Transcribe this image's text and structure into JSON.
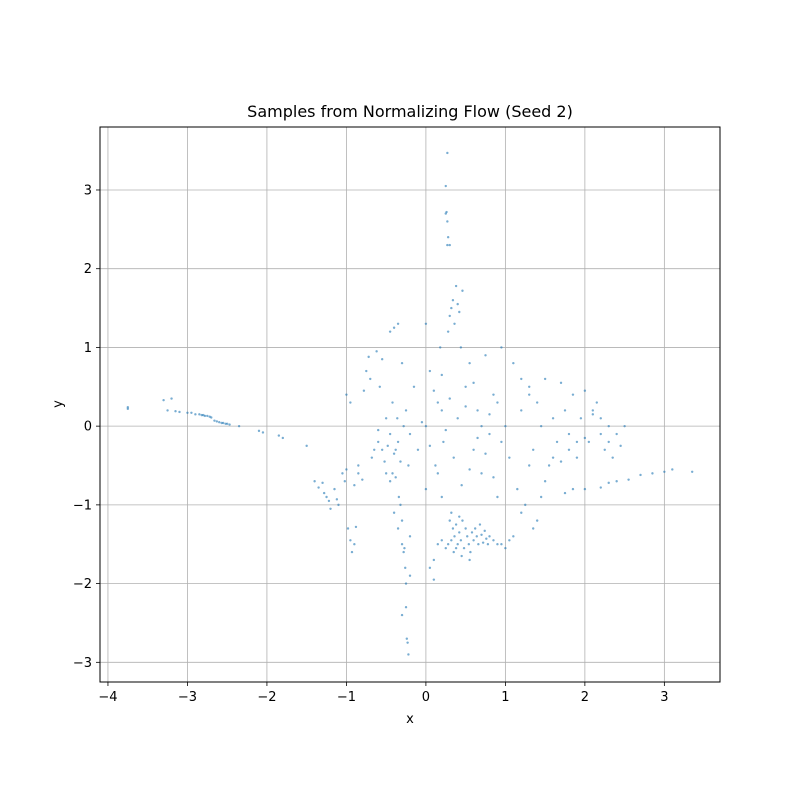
{
  "chart_data": {
    "type": "scatter",
    "title": "Samples from Normalizing Flow (Seed 2)",
    "xlabel": "x",
    "ylabel": "y",
    "xlim": [
      -4.1,
      3.7
    ],
    "ylim": [
      -3.25,
      3.8
    ],
    "xticks": [
      -4,
      -3,
      -2,
      -1,
      0,
      1,
      2,
      3
    ],
    "yticks": [
      -3,
      -2,
      -1,
      0,
      1,
      2,
      3
    ],
    "xtick_labels": [
      "−4",
      "−3",
      "−2",
      "−1",
      "0",
      "1",
      "2",
      "3"
    ],
    "ytick_labels": [
      "−3",
      "−2",
      "−1",
      "0",
      "1",
      "2",
      "3"
    ],
    "grid": true,
    "point_color": "#1f77b4",
    "point_alpha": 0.6,
    "series": [
      {
        "points": [
          [
            -3.75,
            0.24
          ],
          [
            -3.75,
            0.22
          ],
          [
            -3.3,
            0.33
          ],
          [
            -3.25,
            0.2
          ],
          [
            -3.2,
            0.35
          ],
          [
            -3.15,
            0.19
          ],
          [
            -3.1,
            0.18
          ],
          [
            -3.0,
            0.17
          ],
          [
            -2.95,
            0.17
          ],
          [
            -2.9,
            0.15
          ],
          [
            -2.85,
            0.15
          ],
          [
            -2.82,
            0.14
          ],
          [
            -2.8,
            0.14
          ],
          [
            -2.78,
            0.13
          ],
          [
            -2.75,
            0.13
          ],
          [
            -2.72,
            0.12
          ],
          [
            -2.7,
            0.11
          ],
          [
            -2.66,
            0.07
          ],
          [
            -2.63,
            0.06
          ],
          [
            -2.6,
            0.05
          ],
          [
            -2.57,
            0.04
          ],
          [
            -2.55,
            0.04
          ],
          [
            -2.52,
            0.03
          ],
          [
            -2.5,
            0.03
          ],
          [
            -2.47,
            0.02
          ],
          [
            -2.35,
            0.0
          ],
          [
            -2.1,
            -0.06
          ],
          [
            -2.05,
            -0.08
          ],
          [
            -1.85,
            -0.12
          ],
          [
            -1.8,
            -0.15
          ],
          [
            -1.5,
            -0.25
          ],
          [
            -1.4,
            -0.7
          ],
          [
            -1.35,
            -0.78
          ],
          [
            -1.3,
            -0.72
          ],
          [
            -1.28,
            -0.85
          ],
          [
            -1.25,
            -0.9
          ],
          [
            -1.22,
            -0.95
          ],
          [
            -1.2,
            -1.05
          ],
          [
            -1.15,
            -0.8
          ],
          [
            -1.12,
            -0.93
          ],
          [
            -1.1,
            -1.0
          ],
          [
            -1.05,
            -0.6
          ],
          [
            -1.02,
            -0.7
          ],
          [
            -1.0,
            -0.55
          ],
          [
            -0.98,
            -1.3
          ],
          [
            -0.95,
            -1.45
          ],
          [
            -0.93,
            -1.6
          ],
          [
            -0.9,
            -1.5
          ],
          [
            -0.88,
            -1.28
          ],
          [
            -0.85,
            -0.6
          ],
          [
            -1.0,
            0.4
          ],
          [
            -0.95,
            0.3
          ],
          [
            -0.9,
            -0.75
          ],
          [
            -0.85,
            -0.5
          ],
          [
            -0.8,
            -0.68
          ],
          [
            -0.78,
            0.45
          ],
          [
            -0.75,
            0.7
          ],
          [
            -0.72,
            0.88
          ],
          [
            -0.7,
            0.6
          ],
          [
            -0.68,
            -0.4
          ],
          [
            -0.65,
            -0.3
          ],
          [
            -0.62,
            0.95
          ],
          [
            -0.6,
            -0.2
          ],
          [
            -0.58,
            0.5
          ],
          [
            -0.55,
            0.85
          ],
          [
            -0.52,
            -0.45
          ],
          [
            -0.5,
            -0.6
          ],
          [
            -0.48,
            -0.25
          ],
          [
            -0.45,
            -0.1
          ],
          [
            -0.42,
            0.3
          ],
          [
            -0.4,
            -0.35
          ],
          [
            -0.38,
            -0.65
          ],
          [
            -0.36,
            0.1
          ],
          [
            -0.34,
            -0.9
          ],
          [
            -0.32,
            -1.0
          ],
          [
            -0.3,
            -1.2
          ],
          [
            -0.3,
            -1.5
          ],
          [
            -0.28,
            -1.6
          ],
          [
            -0.27,
            -1.55
          ],
          [
            -0.26,
            -1.8
          ],
          [
            -0.25,
            -2.0
          ],
          [
            -0.25,
            -2.3
          ],
          [
            -0.24,
            -2.7
          ],
          [
            -0.23,
            -2.75
          ],
          [
            -0.22,
            -2.9
          ],
          [
            -0.3,
            -2.4
          ],
          [
            -0.2,
            -1.9
          ],
          [
            -0.2,
            -1.4
          ],
          [
            -0.35,
            -1.3
          ],
          [
            -0.4,
            -1.1
          ],
          [
            -0.45,
            1.2
          ],
          [
            -0.4,
            1.25
          ],
          [
            -0.35,
            1.3
          ],
          [
            -0.3,
            0.8
          ],
          [
            -0.25,
            0.2
          ],
          [
            -0.2,
            -0.1
          ],
          [
            -0.15,
            0.5
          ],
          [
            -0.1,
            -0.3
          ],
          [
            -0.05,
            0.05
          ],
          [
            0.0,
            1.3
          ],
          [
            0.0,
            -0.8
          ],
          [
            0.05,
            0.7
          ],
          [
            0.05,
            -1.8
          ],
          [
            0.1,
            -1.7
          ],
          [
            0.1,
            -1.95
          ],
          [
            0.12,
            -0.5
          ],
          [
            0.15,
            0.3
          ],
          [
            0.15,
            -1.5
          ],
          [
            0.18,
            1.0
          ],
          [
            0.2,
            -0.9
          ],
          [
            0.2,
            0.2
          ],
          [
            0.22,
            -0.2
          ],
          [
            0.25,
            2.7
          ],
          [
            0.26,
            2.72
          ],
          [
            0.27,
            2.6
          ],
          [
            0.25,
            3.05
          ],
          [
            0.27,
            3.47
          ],
          [
            0.28,
            2.4
          ],
          [
            0.27,
            2.3
          ],
          [
            0.3,
            2.3
          ],
          [
            0.28,
            1.2
          ],
          [
            0.3,
            1.4
          ],
          [
            0.32,
            1.5
          ],
          [
            0.34,
            1.6
          ],
          [
            0.36,
            1.3
          ],
          [
            0.38,
            1.78
          ],
          [
            0.4,
            1.55
          ],
          [
            0.42,
            1.45
          ],
          [
            0.44,
            1.0
          ],
          [
            0.46,
            1.72
          ],
          [
            0.3,
            -1.2
          ],
          [
            0.32,
            -1.1
          ],
          [
            0.34,
            -1.3
          ],
          [
            0.36,
            -1.4
          ],
          [
            0.38,
            -1.25
          ],
          [
            0.4,
            -1.5
          ],
          [
            0.42,
            -1.35
          ],
          [
            0.44,
            -1.45
          ],
          [
            0.46,
            -1.2
          ],
          [
            0.48,
            -1.55
          ],
          [
            0.5,
            -1.3
          ],
          [
            0.52,
            -1.4
          ],
          [
            0.54,
            -1.5
          ],
          [
            0.56,
            -1.6
          ],
          [
            0.58,
            -1.35
          ],
          [
            0.6,
            -1.45
          ],
          [
            0.62,
            -1.3
          ],
          [
            0.64,
            -1.4
          ],
          [
            0.66,
            -1.5
          ],
          [
            0.68,
            -1.25
          ],
          [
            0.7,
            -1.38
          ],
          [
            0.72,
            -1.48
          ],
          [
            0.74,
            -1.33
          ],
          [
            0.76,
            -1.43
          ],
          [
            0.78,
            -1.5
          ],
          [
            0.8,
            -1.4
          ],
          [
            0.85,
            -1.45
          ],
          [
            0.9,
            -1.5
          ],
          [
            0.95,
            -1.5
          ],
          [
            1.0,
            -1.55
          ],
          [
            1.05,
            -1.45
          ],
          [
            0.25,
            -1.55
          ],
          [
            0.2,
            -1.45
          ],
          [
            0.28,
            -1.5
          ],
          [
            0.35,
            -1.6
          ],
          [
            0.45,
            -1.65
          ],
          [
            0.55,
            -1.7
          ],
          [
            0.32,
            -1.45
          ],
          [
            0.38,
            -1.55
          ],
          [
            0.42,
            -1.15
          ],
          [
            0.5,
            0.5
          ],
          [
            0.55,
            0.8
          ],
          [
            0.6,
            -0.3
          ],
          [
            0.65,
            0.2
          ],
          [
            0.7,
            -0.6
          ],
          [
            0.75,
            0.9
          ],
          [
            0.8,
            -0.1
          ],
          [
            0.85,
            0.4
          ],
          [
            0.9,
            -0.9
          ],
          [
            0.95,
            1.0
          ],
          [
            1.0,
            0.0
          ],
          [
            1.05,
            -0.4
          ],
          [
            1.1,
            0.8
          ],
          [
            1.15,
            -0.8
          ],
          [
            1.2,
            0.2
          ],
          [
            1.25,
            -1.0
          ],
          [
            1.3,
            0.5
          ],
          [
            1.35,
            -0.3
          ],
          [
            1.4,
            -1.2
          ],
          [
            1.45,
            0.0
          ],
          [
            1.2,
            0.6
          ],
          [
            1.3,
            0.4
          ],
          [
            1.4,
            0.3
          ],
          [
            1.5,
            0.6
          ],
          [
            1.55,
            -0.5
          ],
          [
            1.6,
            0.1
          ],
          [
            1.65,
            -0.2
          ],
          [
            1.7,
            0.55
          ],
          [
            1.75,
            0.2
          ],
          [
            1.8,
            -0.1
          ],
          [
            1.85,
            0.4
          ],
          [
            1.9,
            -0.4
          ],
          [
            1.95,
            0.1
          ],
          [
            2.0,
            0.45
          ],
          [
            2.05,
            -0.2
          ],
          [
            2.1,
            0.2
          ],
          [
            2.15,
            0.3
          ],
          [
            2.2,
            -0.1
          ],
          [
            2.25,
            -0.3
          ],
          [
            2.3,
            0.0
          ],
          [
            1.6,
            -0.4
          ],
          [
            1.7,
            -0.45
          ],
          [
            1.8,
            -0.3
          ],
          [
            1.9,
            -0.2
          ],
          [
            2.0,
            -0.15
          ],
          [
            2.1,
            0.15
          ],
          [
            2.2,
            0.1
          ],
          [
            2.3,
            -0.2
          ],
          [
            2.35,
            -0.4
          ],
          [
            2.4,
            -0.1
          ],
          [
            2.45,
            -0.25
          ],
          [
            2.5,
            0.0
          ],
          [
            1.75,
            -0.85
          ],
          [
            1.85,
            -0.8
          ],
          [
            2.0,
            -0.8
          ],
          [
            2.2,
            -0.78
          ],
          [
            2.3,
            -0.72
          ],
          [
            2.4,
            -0.7
          ],
          [
            2.55,
            -0.68
          ],
          [
            2.7,
            -0.62
          ],
          [
            2.85,
            -0.6
          ],
          [
            3.0,
            -0.58
          ],
          [
            3.1,
            -0.55
          ],
          [
            3.35,
            -0.58
          ],
          [
            1.3,
            -0.5
          ],
          [
            1.5,
            -0.7
          ],
          [
            1.2,
            -1.1
          ],
          [
            1.1,
            -1.4
          ],
          [
            1.35,
            -1.3
          ],
          [
            1.45,
            -0.9
          ],
          [
            -0.6,
            -0.05
          ],
          [
            -0.55,
            -0.3
          ],
          [
            -0.5,
            0.1
          ],
          [
            -0.45,
            -0.7
          ],
          [
            -0.42,
            -0.6
          ],
          [
            -0.38,
            -0.3
          ],
          [
            -0.35,
            -0.2
          ],
          [
            -0.32,
            -0.45
          ],
          [
            -0.28,
            0.0
          ],
          [
            -0.22,
            -0.5
          ],
          [
            0.0,
            0.0
          ],
          [
            0.05,
            -0.25
          ],
          [
            0.1,
            0.45
          ],
          [
            0.15,
            -0.6
          ],
          [
            0.2,
            0.65
          ],
          [
            0.25,
            -0.05
          ],
          [
            0.3,
            0.35
          ],
          [
            0.35,
            -0.4
          ],
          [
            0.4,
            0.1
          ],
          [
            0.45,
            -0.75
          ],
          [
            0.5,
            0.25
          ],
          [
            0.55,
            -0.55
          ],
          [
            0.6,
            0.55
          ],
          [
            0.65,
            -0.15
          ],
          [
            0.7,
            0.0
          ],
          [
            0.75,
            -0.35
          ],
          [
            0.8,
            0.15
          ],
          [
            0.85,
            -0.65
          ],
          [
            0.9,
            0.3
          ],
          [
            0.95,
            -0.2
          ]
        ]
      }
    ]
  }
}
